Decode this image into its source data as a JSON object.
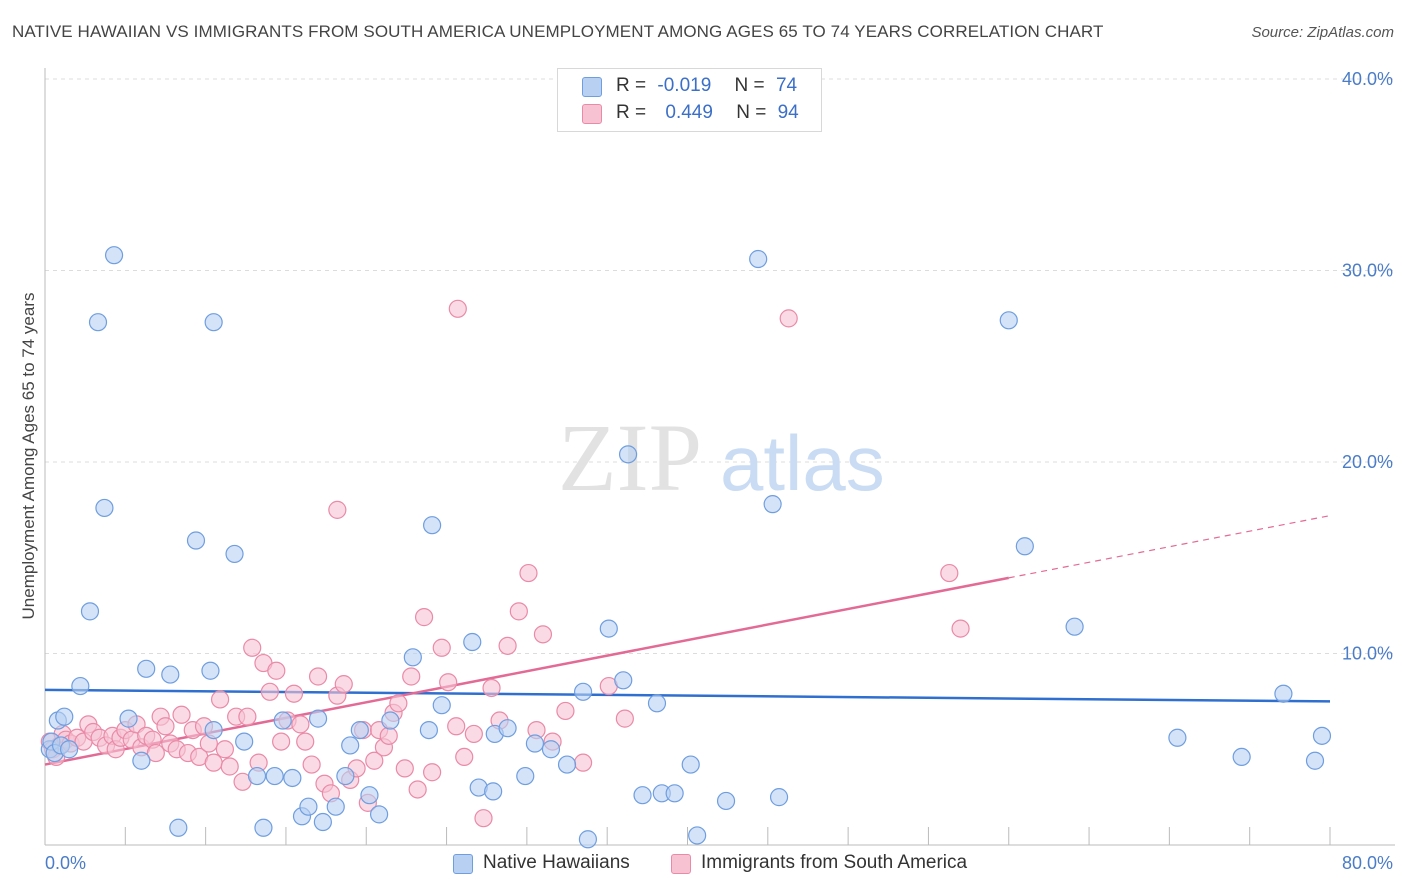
{
  "title": "NATIVE HAWAIIAN VS IMMIGRANTS FROM SOUTH AMERICA UNEMPLOYMENT AMONG AGES 65 TO 74 YEARS CORRELATION CHART",
  "source": "Source: ZipAtlas.com",
  "watermark": {
    "zip": "ZIP",
    "atlas": "atlas"
  },
  "legend": {
    "rows": [
      {
        "r_label": "R =",
        "r_value": "-0.019",
        "n_label": "N =",
        "n_value": "74"
      },
      {
        "r_label": "R =",
        "r_value": "0.449",
        "n_label": "N =",
        "n_value": "94"
      }
    ]
  },
  "colors": {
    "blue_fill": "#b8d0f2",
    "blue_stroke": "#6f9ee0",
    "blue_line": "#2f6fd0",
    "pink_fill": "#f7c3d3",
    "pink_stroke": "#ea8aa8",
    "pink_line": "#e36a95",
    "tick_text": "#4a7cc7",
    "grid": "#dcdcdc"
  },
  "chart_data": {
    "type": "scatter",
    "title": "NATIVE HAWAIIAN VS IMMIGRANTS FROM SOUTH AMERICA UNEMPLOYMENT AMONG AGES 65 TO 74 YEARS CORRELATION CHART",
    "xlabel": "",
    "ylabel": "Unemployment Among Ages 65 to 74 years",
    "xlim": [
      0,
      80
    ],
    "ylim": [
      0,
      40
    ],
    "x_tick_labels": [
      "0.0%",
      "80.0%"
    ],
    "y_ticks": [
      10,
      20,
      30,
      40
    ],
    "y_tick_labels": [
      "10.0%",
      "20.0%",
      "30.0%",
      "40.0%"
    ],
    "grid": true,
    "legend_position": "bottom",
    "series": [
      {
        "name": "Native Hawaiians",
        "color": "#6f9ee0",
        "trend": {
          "x": [
            0,
            80
          ],
          "y": [
            8.1,
            7.5
          ],
          "solid_until": 80
        },
        "points": [
          [
            0.3,
            5.0
          ],
          [
            0.4,
            5.4
          ],
          [
            0.6,
            4.8
          ],
          [
            0.8,
            6.5
          ],
          [
            1.0,
            5.2
          ],
          [
            1.2,
            6.7
          ],
          [
            1.5,
            5.0
          ],
          [
            2.2,
            8.3
          ],
          [
            2.8,
            12.2
          ],
          [
            3.3,
            27.3
          ],
          [
            3.7,
            17.6
          ],
          [
            4.3,
            30.8
          ],
          [
            5.2,
            6.6
          ],
          [
            6.0,
            4.4
          ],
          [
            6.3,
            9.2
          ],
          [
            7.8,
            8.9
          ],
          [
            8.3,
            0.9
          ],
          [
            9.4,
            15.9
          ],
          [
            10.3,
            9.1
          ],
          [
            10.5,
            6.0
          ],
          [
            10.5,
            27.3
          ],
          [
            11.8,
            15.2
          ],
          [
            12.4,
            5.4
          ],
          [
            13.2,
            3.6
          ],
          [
            13.6,
            0.9
          ],
          [
            14.3,
            3.6
          ],
          [
            14.8,
            6.5
          ],
          [
            15.4,
            3.5
          ],
          [
            16.0,
            1.5
          ],
          [
            16.4,
            2.0
          ],
          [
            17.0,
            6.6
          ],
          [
            17.3,
            1.2
          ],
          [
            18.1,
            2.0
          ],
          [
            18.7,
            3.6
          ],
          [
            19.0,
            5.2
          ],
          [
            19.6,
            6.0
          ],
          [
            20.2,
            2.6
          ],
          [
            20.8,
            1.6
          ],
          [
            21.5,
            6.5
          ],
          [
            22.9,
            9.8
          ],
          [
            23.9,
            6.0
          ],
          [
            24.1,
            16.7
          ],
          [
            24.7,
            7.3
          ],
          [
            26.6,
            10.6
          ],
          [
            27.0,
            3.0
          ],
          [
            27.9,
            2.8
          ],
          [
            28.0,
            5.8
          ],
          [
            28.8,
            6.1
          ],
          [
            29.9,
            3.6
          ],
          [
            30.5,
            5.3
          ],
          [
            31.5,
            5.0
          ],
          [
            32.5,
            4.2
          ],
          [
            33.5,
            8.0
          ],
          [
            33.8,
            0.3
          ],
          [
            35.1,
            11.3
          ],
          [
            36.0,
            8.6
          ],
          [
            36.3,
            20.4
          ],
          [
            37.2,
            2.6
          ],
          [
            38.1,
            7.4
          ],
          [
            38.4,
            2.7
          ],
          [
            39.2,
            2.7
          ],
          [
            40.2,
            4.2
          ],
          [
            40.6,
            0.5
          ],
          [
            42.4,
            2.3
          ],
          [
            44.4,
            30.6
          ],
          [
            45.3,
            17.8
          ],
          [
            45.7,
            2.5
          ],
          [
            60.0,
            27.4
          ],
          [
            61.0,
            15.6
          ],
          [
            64.1,
            11.4
          ],
          [
            70.5,
            5.6
          ],
          [
            74.5,
            4.6
          ],
          [
            77.1,
            7.9
          ],
          [
            79.5,
            5.7
          ],
          [
            82.5,
            4.4
          ]
        ]
      },
      {
        "name": "Immigrants from South America",
        "color": "#ea8aa8",
        "trend": {
          "x": [
            0,
            80
          ],
          "y": [
            4.2,
            17.2
          ],
          "solid_until": 60
        },
        "points": [
          [
            0.3,
            5.4
          ],
          [
            0.5,
            5.0
          ],
          [
            0.7,
            4.6
          ],
          [
            0.9,
            5.2
          ],
          [
            1.1,
            5.8
          ],
          [
            1.3,
            5.5
          ],
          [
            1.6,
            5.3
          ],
          [
            2.0,
            5.6
          ],
          [
            2.4,
            5.4
          ],
          [
            2.7,
            6.3
          ],
          [
            3.0,
            5.9
          ],
          [
            3.4,
            5.6
          ],
          [
            3.8,
            5.2
          ],
          [
            4.2,
            5.7
          ],
          [
            4.4,
            5.0
          ],
          [
            4.7,
            5.6
          ],
          [
            5.0,
            6.0
          ],
          [
            5.4,
            5.5
          ],
          [
            5.7,
            6.3
          ],
          [
            6.0,
            5.1
          ],
          [
            6.3,
            5.7
          ],
          [
            6.7,
            5.5
          ],
          [
            6.9,
            4.8
          ],
          [
            7.2,
            6.7
          ],
          [
            7.5,
            6.2
          ],
          [
            7.8,
            5.3
          ],
          [
            8.2,
            5.0
          ],
          [
            8.5,
            6.8
          ],
          [
            8.9,
            4.8
          ],
          [
            9.2,
            6.0
          ],
          [
            9.6,
            4.6
          ],
          [
            9.9,
            6.2
          ],
          [
            10.2,
            5.3
          ],
          [
            10.5,
            4.3
          ],
          [
            10.9,
            7.6
          ],
          [
            11.2,
            5.0
          ],
          [
            11.5,
            4.1
          ],
          [
            11.9,
            6.7
          ],
          [
            12.3,
            3.3
          ],
          [
            12.6,
            6.7
          ],
          [
            12.9,
            10.3
          ],
          [
            13.3,
            4.3
          ],
          [
            13.6,
            9.5
          ],
          [
            14.0,
            8.0
          ],
          [
            14.4,
            9.1
          ],
          [
            14.7,
            5.4
          ],
          [
            15.1,
            6.5
          ],
          [
            15.5,
            7.9
          ],
          [
            15.9,
            6.3
          ],
          [
            16.2,
            5.4
          ],
          [
            16.6,
            4.2
          ],
          [
            17.0,
            8.8
          ],
          [
            17.4,
            3.2
          ],
          [
            17.8,
            2.7
          ],
          [
            18.2,
            7.8
          ],
          [
            18.6,
            8.4
          ],
          [
            19.0,
            3.4
          ],
          [
            19.4,
            4.0
          ],
          [
            19.8,
            6.0
          ],
          [
            20.1,
            2.2
          ],
          [
            20.5,
            4.4
          ],
          [
            20.8,
            6.0
          ],
          [
            21.1,
            5.1
          ],
          [
            21.4,
            5.7
          ],
          [
            21.7,
            6.9
          ],
          [
            22.0,
            7.4
          ],
          [
            22.4,
            4.0
          ],
          [
            22.8,
            8.8
          ],
          [
            23.2,
            2.9
          ],
          [
            23.6,
            11.9
          ],
          [
            24.1,
            3.8
          ],
          [
            24.7,
            10.3
          ],
          [
            25.1,
            8.5
          ],
          [
            25.6,
            6.2
          ],
          [
            26.1,
            4.6
          ],
          [
            26.7,
            5.8
          ],
          [
            27.3,
            1.4
          ],
          [
            27.8,
            8.2
          ],
          [
            28.3,
            6.5
          ],
          [
            28.8,
            10.4
          ],
          [
            29.5,
            12.2
          ],
          [
            30.1,
            14.2
          ],
          [
            30.6,
            6.0
          ],
          [
            31.0,
            11.0
          ],
          [
            31.6,
            5.4
          ],
          [
            32.4,
            7.0
          ],
          [
            33.5,
            4.3
          ],
          [
            35.1,
            8.3
          ],
          [
            36.1,
            6.6
          ],
          [
            46.3,
            27.5
          ],
          [
            56.3,
            14.2
          ],
          [
            57.0,
            11.3
          ],
          [
            25.7,
            28.0
          ],
          [
            18.2,
            17.5
          ]
        ]
      }
    ]
  },
  "bottom_legend": [
    "Native Hawaiians",
    "Immigrants from South America"
  ]
}
